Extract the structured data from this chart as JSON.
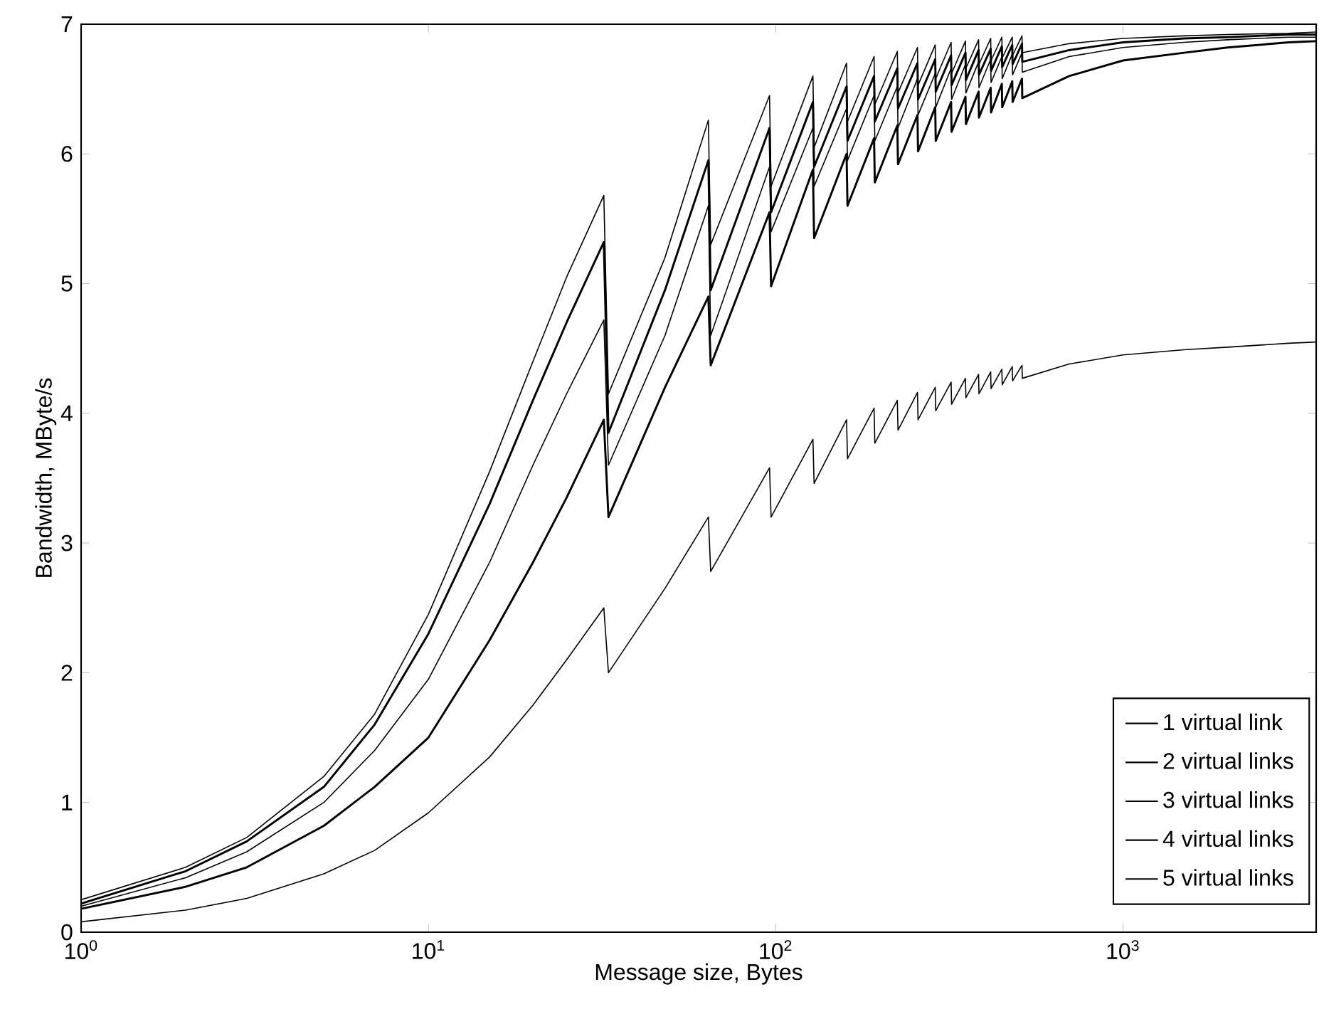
{
  "chart_data": {
    "type": "line",
    "xlabel": "Message size, Bytes",
    "ylabel": "Bandwidth, MByte/s",
    "log": "x",
    "xlim": [
      1,
      3600
    ],
    "ylim": [
      0,
      7
    ],
    "xticks": [
      {
        "value": 1,
        "label": "10$^{0}$"
      },
      {
        "value": 10,
        "label": "10$^{1}$"
      },
      {
        "value": 100,
        "label": "10$^{2}$"
      },
      {
        "value": 1000,
        "label": "10$^{3}$"
      }
    ],
    "yticks": [
      0,
      1,
      2,
      3,
      4,
      5,
      6,
      7
    ],
    "grid": false,
    "legend": "bottom right",
    "line_style": "solid",
    "x": [
      1,
      2,
      3,
      5,
      7,
      10,
      15,
      20,
      25,
      32,
      33,
      48,
      64,
      65,
      96,
      97,
      128,
      129,
      160,
      161,
      192,
      193,
      224,
      225,
      256,
      257,
      288,
      289,
      320,
      321,
      352,
      353,
      384,
      385,
      416,
      417,
      448,
      449,
      480,
      481,
      512,
      513,
      700,
      1000,
      1500,
      2000,
      3000,
      3600
    ],
    "series": [
      {
        "name": "1 virtual link",
        "color": "#000000",
        "values": [
          0.08,
          0.17,
          0.26,
          0.45,
          0.63,
          0.92,
          1.35,
          1.75,
          2.1,
          2.5,
          2.0,
          2.65,
          3.2,
          2.78,
          3.58,
          3.2,
          3.8,
          3.46,
          3.95,
          3.65,
          4.04,
          3.77,
          4.1,
          3.87,
          4.16,
          3.95,
          4.2,
          4.02,
          4.24,
          4.07,
          4.27,
          4.12,
          4.3,
          4.15,
          4.32,
          4.19,
          4.34,
          4.22,
          4.36,
          4.25,
          4.37,
          4.27,
          4.38,
          4.45,
          4.49,
          4.51,
          4.54,
          4.55
        ]
      },
      {
        "name": "2 virtual links",
        "color": "#000000",
        "values": [
          0.18,
          0.35,
          0.5,
          0.82,
          1.12,
          1.5,
          2.25,
          2.85,
          3.35,
          3.95,
          3.2,
          4.2,
          4.9,
          4.37,
          5.55,
          4.98,
          5.88,
          5.35,
          6.0,
          5.6,
          6.12,
          5.78,
          6.22,
          5.92,
          6.3,
          6.02,
          6.36,
          6.1,
          6.4,
          6.17,
          6.44,
          6.23,
          6.48,
          6.28,
          6.51,
          6.32,
          6.54,
          6.36,
          6.56,
          6.4,
          6.58,
          6.43,
          6.6,
          6.72,
          6.78,
          6.82,
          6.86,
          6.87
        ]
      },
      {
        "name": "3 virtual links",
        "color": "#000000",
        "values": [
          0.2,
          0.42,
          0.62,
          1.0,
          1.4,
          1.95,
          2.85,
          3.6,
          4.15,
          4.72,
          3.6,
          4.6,
          5.6,
          4.6,
          5.9,
          5.4,
          6.2,
          5.75,
          6.35,
          5.95,
          6.45,
          6.1,
          6.52,
          6.2,
          6.58,
          6.3,
          6.62,
          6.36,
          6.66,
          6.42,
          6.69,
          6.47,
          6.71,
          6.51,
          6.73,
          6.55,
          6.75,
          6.58,
          6.77,
          6.61,
          6.78,
          6.63,
          6.75,
          6.82,
          6.86,
          6.88,
          6.9,
          6.9
        ]
      },
      {
        "name": "4 virtual links",
        "color": "#000000",
        "values": [
          0.22,
          0.47,
          0.7,
          1.12,
          1.6,
          2.3,
          3.3,
          4.1,
          4.7,
          5.32,
          3.85,
          4.95,
          5.95,
          4.95,
          6.2,
          5.55,
          6.4,
          5.9,
          6.52,
          6.1,
          6.6,
          6.25,
          6.66,
          6.35,
          6.7,
          6.42,
          6.73,
          6.48,
          6.76,
          6.53,
          6.78,
          6.57,
          6.8,
          6.61,
          6.81,
          6.64,
          6.83,
          6.67,
          6.84,
          6.69,
          6.85,
          6.71,
          6.8,
          6.86,
          6.89,
          6.9,
          6.92,
          6.92
        ]
      },
      {
        "name": "5 virtual links",
        "color": "#000000",
        "values": [
          0.25,
          0.5,
          0.73,
          1.2,
          1.68,
          2.45,
          3.55,
          4.4,
          5.05,
          5.68,
          4.15,
          5.2,
          6.26,
          5.3,
          6.45,
          5.75,
          6.6,
          6.05,
          6.7,
          6.25,
          6.75,
          6.38,
          6.79,
          6.47,
          6.82,
          6.53,
          6.84,
          6.58,
          6.86,
          6.62,
          6.87,
          6.66,
          6.88,
          6.69,
          6.89,
          6.72,
          6.9,
          6.74,
          6.9,
          6.76,
          6.91,
          6.78,
          6.85,
          6.89,
          6.91,
          6.92,
          6.93,
          6.94
        ]
      }
    ]
  }
}
